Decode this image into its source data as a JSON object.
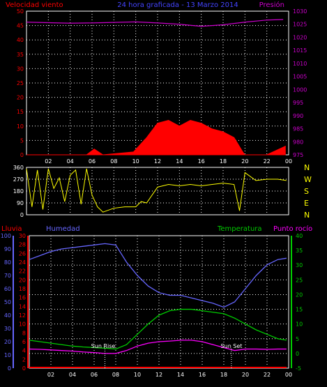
{
  "header": {
    "left": "Velocidad viento",
    "center": "24 hora graficada - 13 Marzo 2014",
    "right": "Presión"
  },
  "lower_header": {
    "rain": "Lluvia",
    "humidity": "Humedad",
    "temperature": "Temperatura",
    "dew_point": "Punto rocío"
  },
  "annotations": {
    "sun_rise": "Sun Rise",
    "sun_set": "Sun Set"
  },
  "colors": {
    "wind": "#ff0000",
    "gust": "#00cc00",
    "pressure": "#cc00cc",
    "direction": "#ffff00",
    "humidity": "#6666ff",
    "temperature": "#00cc00",
    "dew_point": "#ff00ff",
    "rain": "#ff0000",
    "grid": "#ffffff"
  },
  "chart_data": [
    {
      "type": "area",
      "panel": "wind_pressure",
      "x_ticks": [
        "02",
        "04",
        "06",
        "08",
        "10",
        "12",
        "14",
        "16",
        "18",
        "20",
        "22",
        "00"
      ],
      "y_left_ticks": [
        "0",
        "5",
        "10",
        "15",
        "20",
        "25",
        "30",
        "35",
        "40",
        "45",
        "50"
      ],
      "y_right_ticks": [
        "975",
        "980",
        "985",
        "990",
        "995",
        "1000",
        "1005",
        "1010",
        "1015",
        "1020",
        "1025",
        "1030"
      ],
      "ylim_left": [
        0,
        50
      ],
      "ylim_right": [
        975,
        1030
      ],
      "series": [
        {
          "name": "Presión",
          "axis": "right",
          "x": [
            0,
            2,
            4,
            6,
            8,
            10,
            12,
            14,
            16,
            18,
            20,
            22,
            23.5
          ],
          "values": [
            1025.8,
            1025.6,
            1025.4,
            1025.5,
            1025.7,
            1025.9,
            1025.5,
            1025.0,
            1024.2,
            1024.8,
            1025.8,
            1026.6,
            1026.8
          ]
        },
        {
          "name": "Velocidad viento",
          "axis": "left",
          "x": [
            0,
            5.5,
            6.2,
            7,
            9.8,
            11,
            12,
            13,
            14,
            15,
            16,
            17,
            18,
            19,
            19.8,
            20,
            22,
            23.7
          ],
          "values": [
            0,
            0,
            2,
            0,
            1,
            6,
            11,
            12,
            10,
            12,
            11,
            9,
            8,
            6,
            1,
            0,
            0,
            3
          ]
        }
      ],
      "grid": true
    },
    {
      "type": "line",
      "panel": "wind_direction",
      "x_ticks": [
        "02",
        "04",
        "06",
        "08",
        "10",
        "12",
        "14",
        "16",
        "18",
        "20",
        "22",
        "00"
      ],
      "y_ticks": [
        "0",
        "90",
        "180",
        "270",
        "360"
      ],
      "ylim": [
        0,
        360
      ],
      "direction_labels": [
        "N",
        "W",
        "S",
        "E",
        "N"
      ],
      "series": [
        {
          "name": "Dirección",
          "x": [
            0,
            0.5,
            1,
            1.5,
            2,
            2.5,
            3,
            3.5,
            4,
            4.5,
            5,
            5.5,
            6,
            6.5,
            7,
            8,
            9,
            10,
            10.5,
            11,
            12,
            13,
            14,
            15,
            16,
            17,
            18,
            19,
            19.5,
            20,
            21,
            22,
            23,
            23.8
          ],
          "values": [
            350,
            60,
            340,
            40,
            350,
            200,
            280,
            100,
            300,
            340,
            80,
            350,
            150,
            60,
            20,
            50,
            60,
            60,
            100,
            90,
            210,
            230,
            220,
            230,
            220,
            230,
            240,
            230,
            30,
            320,
            260,
            270,
            270,
            260
          ]
        }
      ],
      "grid": true
    },
    {
      "type": "line",
      "panel": "temp_humidity",
      "x_ticks": [
        "02",
        "04",
        "06",
        "08",
        "10",
        "12",
        "14",
        "16",
        "18",
        "20",
        "22",
        "00"
      ],
      "y_left_ticks_humidity": [
        "0",
        "10",
        "20",
        "30",
        "40",
        "50",
        "60",
        "70",
        "80",
        "90",
        "100"
      ],
      "y_left_ticks_rain": [
        "0",
        "2",
        "4",
        "6",
        "8",
        "10",
        "12",
        "14",
        "16",
        "18",
        "20",
        "22",
        "24",
        "26",
        "28",
        "30"
      ],
      "y_right_ticks": [
        "-5",
        "0",
        "5",
        "10",
        "15",
        "20",
        "25",
        "30",
        "35",
        "40"
      ],
      "ylim_humidity": [
        0,
        100
      ],
      "ylim_temp": [
        -5,
        40
      ],
      "series": [
        {
          "name": "Humedad",
          "axis": "humidity",
          "x": [
            0,
            1,
            2,
            3,
            4,
            5,
            6,
            7,
            8,
            9,
            10,
            11,
            12,
            13,
            14,
            15,
            16,
            17,
            18,
            19,
            20,
            21,
            22,
            23,
            23.8
          ],
          "values": [
            82,
            85,
            88,
            90,
            91,
            92,
            93,
            94,
            93,
            80,
            70,
            62,
            57,
            55,
            55,
            53,
            51,
            49,
            46,
            50,
            60,
            70,
            78,
            82,
            83
          ]
        },
        {
          "name": "Temperatura",
          "axis": "temp",
          "x": [
            0,
            1,
            2,
            3,
            4,
            5,
            6,
            7,
            8,
            9,
            10,
            11,
            12,
            13,
            14,
            15,
            16,
            17,
            18,
            19,
            20,
            21,
            22,
            23,
            23.8
          ],
          "values": [
            4.5,
            4.0,
            3.5,
            3.0,
            2.5,
            2.2,
            2.0,
            1.8,
            1.5,
            3.0,
            6.5,
            10.0,
            13.0,
            14.5,
            15.0,
            15.0,
            14.5,
            14.0,
            13.5,
            12.0,
            10.0,
            8.0,
            6.5,
            5.0,
            4.5
          ]
        },
        {
          "name": "Punto rocío",
          "axis": "temp",
          "x": [
            0,
            1,
            2,
            3,
            4,
            5,
            6,
            7,
            8,
            9,
            10,
            11,
            12,
            13,
            14,
            15,
            16,
            17,
            18,
            19,
            20,
            21,
            22,
            23,
            23.8
          ],
          "values": [
            1.5,
            1.4,
            1.2,
            1.0,
            0.8,
            0.5,
            0.3,
            0.0,
            0.0,
            1.0,
            2.5,
            3.5,
            4.0,
            4.2,
            4.5,
            4.5,
            4.0,
            3.0,
            2.0,
            1.0,
            1.5,
            1.5,
            1.4,
            1.5,
            1.5
          ]
        },
        {
          "name": "Lluvia",
          "axis": "rain",
          "x": [
            0,
            23.8
          ],
          "values": [
            0,
            0
          ]
        }
      ],
      "sun_rise_hour": 7.0,
      "sun_set_hour": 18.7,
      "grid": true
    }
  ]
}
